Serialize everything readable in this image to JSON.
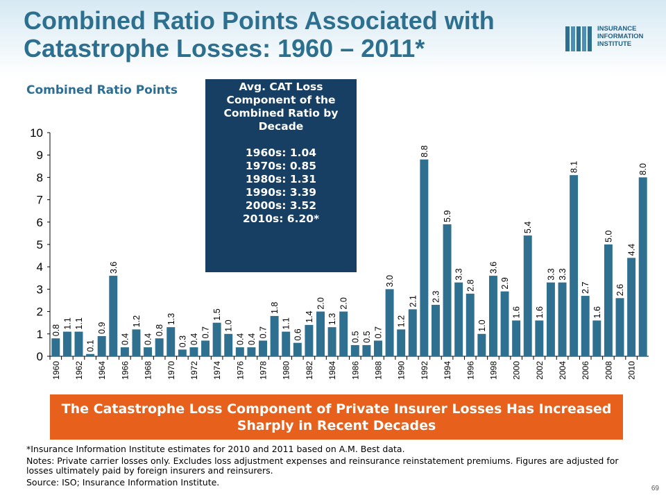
{
  "title": "Combined Ratio Points Associated with Catastrophe Losses: 1960 – 2011*",
  "logo": {
    "text": "INSURANCE\nINFORMATION\nINSTITUTE"
  },
  "subtitle": "Combined Ratio Points",
  "decade_box": {
    "heading": "Avg. CAT  Loss Component of the Combined Ratio   by Decade",
    "lines": [
      "1960s: 1.04",
      "1970s: 0.85",
      "1980s: 1.31",
      "1990s: 3.39",
      "2000s: 3.52",
      "2010s: 6.20*"
    ]
  },
  "callout": "The Catastrophe Loss Component of Private Insurer Losses Has Increased Sharply in Recent Decades",
  "notes": {
    "footnote": "*Insurance Information Institute estimates for 2010 and 2011 based on A.M. Best data.",
    "notes": "Notes: Private carrier losses only.  Excludes loss adjustment expenses and reinsurance reinstatement premiums. Figures are adjusted for losses ultimately paid by foreign insurers and reinsurers.",
    "source": "Source: ISO; Insurance Information Institute."
  },
  "page_number": "69",
  "colors": {
    "bar": "#2f6f8f",
    "title": "#2d6f8f",
    "callout": "#e7611c",
    "box": "#173f63"
  },
  "chart_data": {
    "type": "bar",
    "x": [
      1960,
      1961,
      1962,
      1963,
      1964,
      1965,
      1966,
      1967,
      1968,
      1969,
      1970,
      1971,
      1972,
      1973,
      1974,
      1975,
      1976,
      1977,
      1978,
      1979,
      1980,
      1981,
      1982,
      1983,
      1984,
      1985,
      1986,
      1987,
      1988,
      1989,
      1990,
      1991,
      1992,
      1993,
      1994,
      1995,
      1996,
      1997,
      1998,
      1999,
      2000,
      2001,
      2002,
      2003,
      2004,
      2005,
      2006,
      2007,
      2008,
      2009,
      2010,
      2011
    ],
    "values": [
      0.8,
      1.1,
      1.1,
      0.1,
      0.9,
      3.6,
      0.4,
      1.2,
      0.4,
      0.8,
      1.3,
      0.3,
      0.4,
      0.7,
      1.5,
      1.0,
      0.4,
      0.4,
      0.7,
      1.8,
      1.1,
      0.6,
      1.4,
      2.0,
      1.3,
      2.0,
      0.5,
      0.5,
      0.7,
      3.0,
      1.2,
      2.1,
      8.8,
      2.3,
      5.9,
      3.3,
      2.8,
      1.0,
      3.6,
      2.9,
      1.6,
      5.4,
      1.6,
      3.3,
      3.3,
      8.1,
      2.7,
      1.6,
      5.0,
      2.6,
      4.4,
      8.0
    ],
    "value_labels": [
      "0.8",
      "1.1",
      "1.1",
      "0.1",
      "0.9",
      "3.6",
      "0.4",
      "1.2",
      "0.4",
      "0.8",
      "1.3",
      "0.3",
      "0.4",
      "0.7",
      "1.5",
      "1.0",
      "0.4",
      "0.4",
      "0.7",
      "1.8",
      "1.1",
      "0.6",
      "1.4",
      "2.0",
      "1.3",
      "2.0",
      "0.5",
      "0.5",
      "0.7",
      "3.0",
      "1.2",
      "2.1",
      "8.8",
      "2.3",
      "5.9",
      "3.3",
      "2.8",
      "1.0",
      "3.6",
      "2.9",
      "1.6",
      "5.4",
      "1.6",
      "3.3",
      "3.3",
      "8.1",
      "2.7",
      "1.6",
      "5.0",
      "2.6",
      "4.4",
      "8.0"
    ],
    "x_tick_labels": [
      "1960",
      "1962",
      "1964",
      "1966",
      "1968",
      "1970",
      "1972",
      "1974",
      "1976",
      "1978",
      "1980",
      "1982",
      "1984",
      "1986",
      "1988",
      "1990",
      "1992",
      "1994",
      "1996",
      "1998",
      "2000",
      "2002",
      "2004",
      "2006",
      "2008",
      "2010"
    ],
    "y_ticks": [
      0,
      1,
      2,
      3,
      4,
      5,
      6,
      7,
      8,
      9,
      10
    ],
    "ylim": [
      0,
      10
    ],
    "title": "Combined Ratio Points Associated with Catastrophe Losses: 1960 – 2011*",
    "ylabel": "Combined Ratio Points",
    "xlabel": "",
    "grid": false,
    "legend": "none"
  }
}
